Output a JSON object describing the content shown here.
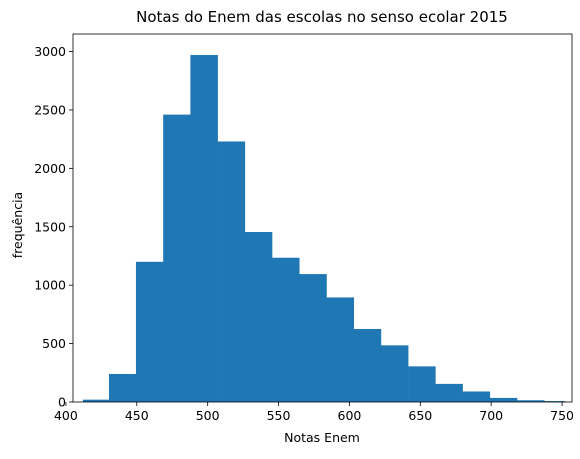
{
  "chart_data": {
    "type": "histogram",
    "title": "Notas do Enem das escolas no senso ecolar 2015",
    "xlabel": "Notas Enem",
    "ylabel": "frequência",
    "xlim": [
      405,
      757
    ],
    "ylim": [
      0,
      3150
    ],
    "xticks": [
      400,
      450,
      500,
      550,
      600,
      650,
      700,
      750
    ],
    "yticks": [
      0,
      500,
      1000,
      1500,
      2000,
      2500,
      3000
    ],
    "bin_edges": [
      412,
      430.4,
      449.4,
      468.6,
      487.8,
      507,
      526.2,
      545.4,
      564.6,
      583.8,
      603,
      622.2,
      641.4,
      660.6,
      679.8,
      699,
      718.2,
      737.4,
      752
    ],
    "values": [
      20,
      240,
      1200,
      2460,
      2970,
      2230,
      1455,
      1235,
      1095,
      895,
      625,
      485,
      305,
      155,
      90,
      35,
      15,
      8
    ],
    "color": "#1f77b4",
    "grid": false,
    "legend": null
  }
}
